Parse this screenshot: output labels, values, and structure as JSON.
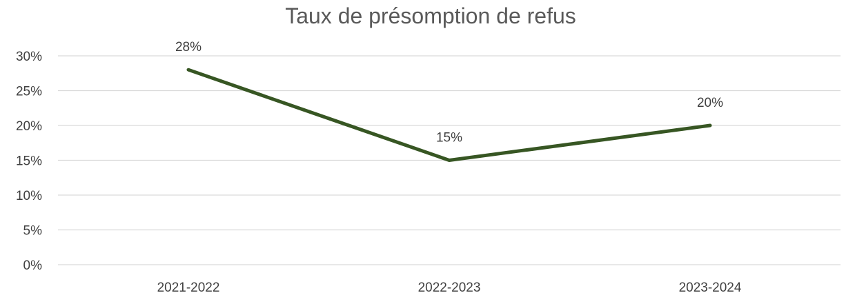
{
  "chart_data": {
    "type": "line",
    "title": "Taux de présomption de refus",
    "categories": [
      "2021-2022",
      "2022-2023",
      "2023-2024"
    ],
    "series": [
      {
        "values": [
          28,
          15,
          20
        ],
        "labels": [
          "28%",
          "15%",
          "20%"
        ],
        "color": "#375623"
      }
    ],
    "ylim": [
      0,
      30
    ],
    "yticks": [
      0,
      5,
      10,
      15,
      20,
      25,
      30
    ],
    "ytick_labels": [
      "0%",
      "5%",
      "10%",
      "15%",
      "20%",
      "25%",
      "30%"
    ],
    "grid": true,
    "legend": "none"
  }
}
